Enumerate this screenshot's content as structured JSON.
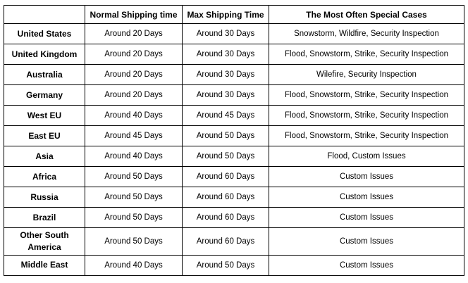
{
  "table": {
    "columns": [
      "",
      "Normal Shipping time",
      "Max Shipping Time",
      "The Most Often Special Cases"
    ],
    "rows": [
      {
        "region": "United States",
        "normal": "Around 20 Days",
        "max": "Around 30 Days",
        "cases": "Snowstorm, Wildfire, Security Inspection"
      },
      {
        "region": "United Kingdom",
        "normal": "Around 20 Days",
        "max": "Around 30 Days",
        "cases": "Flood, Snowstorm, Strike, Security Inspection"
      },
      {
        "region": "Australia",
        "normal": "Around 20 Days",
        "max": "Around 30 Days",
        "cases": "Wilefire, Security Inspection"
      },
      {
        "region": "Germany",
        "normal": "Around 20 Days",
        "max": "Around 30 Days",
        "cases": "Flood, Snowstorm, Strike, Security Inspection"
      },
      {
        "region": "West EU",
        "normal": "Around 40 Days",
        "max": "Around 45 Days",
        "cases": "Flood, Snowstorm, Strike, Security Inspection"
      },
      {
        "region": "East EU",
        "normal": "Around 45 Days",
        "max": "Around 50 Days",
        "cases": "Flood, Snowstorm, Strike, Security Inspection"
      },
      {
        "region": "Asia",
        "normal": "Around 40 Days",
        "max": "Around 50 Days",
        "cases": "Flood, Custom Issues"
      },
      {
        "region": "Africa",
        "normal": "Around 50 Days",
        "max": "Around 60 Days",
        "cases": "Custom Issues"
      },
      {
        "region": "Russia",
        "normal": "Around 50 Days",
        "max": "Around 60 Days",
        "cases": "Custom Issues"
      },
      {
        "region": "Brazil",
        "normal": "Around 50 Days",
        "max": "Around 60 Days",
        "cases": "Custom Issues"
      },
      {
        "region": "Other South America",
        "normal": "Around 50 Days",
        "max": "Around 60 Days",
        "cases": "Custom Issues"
      },
      {
        "region": "Middle East",
        "normal": "Around 40 Days",
        "max": "Around 50 Days",
        "cases": "Custom Issues"
      }
    ],
    "colors": {
      "border": "#000000",
      "text": "#000000",
      "background": "#ffffff"
    }
  }
}
